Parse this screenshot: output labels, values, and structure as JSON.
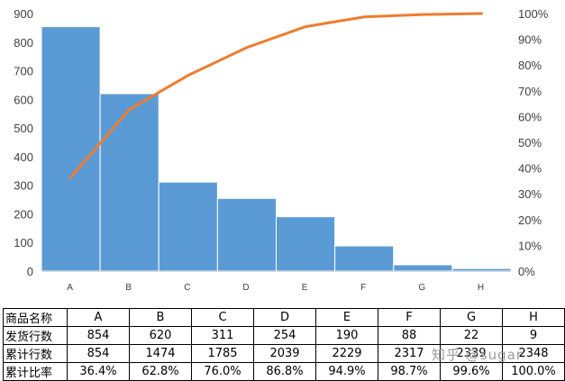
{
  "chart_data": {
    "type": "bar+line",
    "categories": [
      "A",
      "B",
      "C",
      "D",
      "E",
      "F",
      "G",
      "H"
    ],
    "series": [
      {
        "name": "发货行数",
        "type": "bar",
        "axis": "left",
        "color": "#5b9bd5",
        "values": [
          854,
          620,
          311,
          254,
          190,
          88,
          22,
          9
        ]
      },
      {
        "name": "累计比率",
        "type": "line",
        "axis": "right",
        "color": "#ed7d31",
        "values": [
          36.4,
          62.8,
          76.0,
          86.8,
          94.9,
          98.7,
          99.6,
          100.0
        ]
      }
    ],
    "y_left": {
      "min": 0,
      "max": 900,
      "ticks": [
        "0",
        "100",
        "200",
        "300",
        "400",
        "500",
        "600",
        "700",
        "800",
        "900"
      ]
    },
    "y_right": {
      "min": 0,
      "max": 100,
      "ticks": [
        "0%",
        "10%",
        "20%",
        "30%",
        "40%",
        "50%",
        "60%",
        "70%",
        "80%",
        "90%",
        "100%"
      ]
    },
    "grid": false,
    "title": ""
  },
  "table": {
    "rows": [
      {
        "header": "商品名称",
        "cells": [
          "A",
          "B",
          "C",
          "D",
          "E",
          "F",
          "G",
          "H"
        ]
      },
      {
        "header": "发货行数",
        "cells": [
          "854",
          "620",
          "311",
          "254",
          "190",
          "88",
          "22",
          "9"
        ]
      },
      {
        "header": "累计行数",
        "cells": [
          "854",
          "1474",
          "1785",
          "2039",
          "2229",
          "2317",
          "2339",
          "2348"
        ]
      },
      {
        "header": "累计比率",
        "cells": [
          "36.4%",
          "62.8%",
          "76.0%",
          "86.8%",
          "94.9%",
          "98.7%",
          "99.6%",
          "100.0%"
        ]
      }
    ]
  },
  "watermark": "知乎 @sugar"
}
